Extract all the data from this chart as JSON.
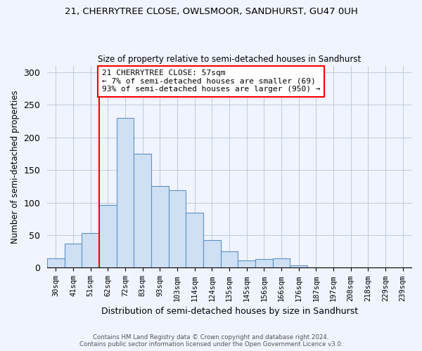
{
  "title1": "21, CHERRYTREE CLOSE, OWLSMOOR, SANDHURST, GU47 0UH",
  "title2": "Size of property relative to semi-detached houses in Sandhurst",
  "xlabel": "Distribution of semi-detached houses by size in Sandhurst",
  "ylabel": "Number of semi-detached properties",
  "bar_labels": [
    "30sqm",
    "41sqm",
    "51sqm",
    "62sqm",
    "72sqm",
    "83sqm",
    "93sqm",
    "103sqm",
    "114sqm",
    "124sqm",
    "135sqm",
    "145sqm",
    "156sqm",
    "166sqm",
    "176sqm",
    "187sqm",
    "197sqm",
    "208sqm",
    "218sqm",
    "229sqm",
    "239sqm"
  ],
  "bar_values": [
    15,
    37,
    53,
    96,
    230,
    175,
    125,
    119,
    85,
    42,
    25,
    11,
    13,
    14,
    4,
    1,
    0,
    1,
    0,
    0,
    1
  ],
  "bar_color": "#cfe0f5",
  "bar_edge_color": "#6090c0",
  "vline_color": "red",
  "annotation_title": "21 CHERRYTREE CLOSE: 57sqm",
  "annotation_line1": "← 7% of semi-detached houses are smaller (69)",
  "annotation_line2": "93% of semi-detached houses are larger (950) →",
  "annotation_box_color": "white",
  "annotation_box_edge_color": "red",
  "ylim": [
    0,
    310
  ],
  "yticks": [
    0,
    50,
    100,
    150,
    200,
    250,
    300
  ],
  "footer1": "Contains HM Land Registry data © Crown copyright and database right 2024.",
  "footer2": "Contains public sector information licensed under the Open Government Licence v3.0.",
  "bg_color": "#f0f4ff"
}
